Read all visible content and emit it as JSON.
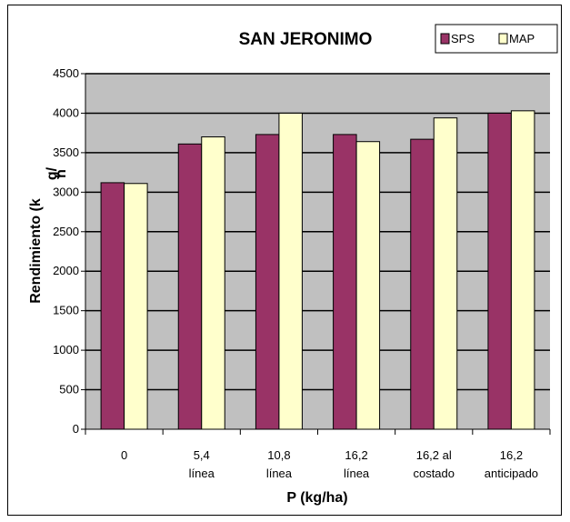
{
  "chart_data": {
    "type": "bar",
    "title": "SAN JERONIMO",
    "xlabel": "P (kg/ha)",
    "ylabel_lines": [
      "Rendimiento (k",
      "g/",
      "h"
    ],
    "categories": [
      [
        "0"
      ],
      [
        "5,4",
        "línea"
      ],
      [
        "10,8",
        "línea"
      ],
      [
        "16,2",
        "línea"
      ],
      [
        "16,2 al",
        "costado"
      ],
      [
        "16,2",
        "anticipado"
      ]
    ],
    "series": [
      {
        "name": "SPS",
        "color": "#993366",
        "values": [
          3120,
          3610,
          3730,
          3730,
          3670,
          4000
        ]
      },
      {
        "name": "MAP",
        "color": "#FFFFCC",
        "values": [
          3110,
          3700,
          4000,
          3640,
          3940,
          4030
        ]
      }
    ],
    "ylim": [
      0,
      4500
    ],
    "yticks": [
      "0",
      "500",
      "1000",
      "1500",
      "2000",
      "2500",
      "3000",
      "3500",
      "4000",
      "4500"
    ],
    "grid": true,
    "plot_background": "#C0C0C0",
    "legend_position": "top-right"
  }
}
